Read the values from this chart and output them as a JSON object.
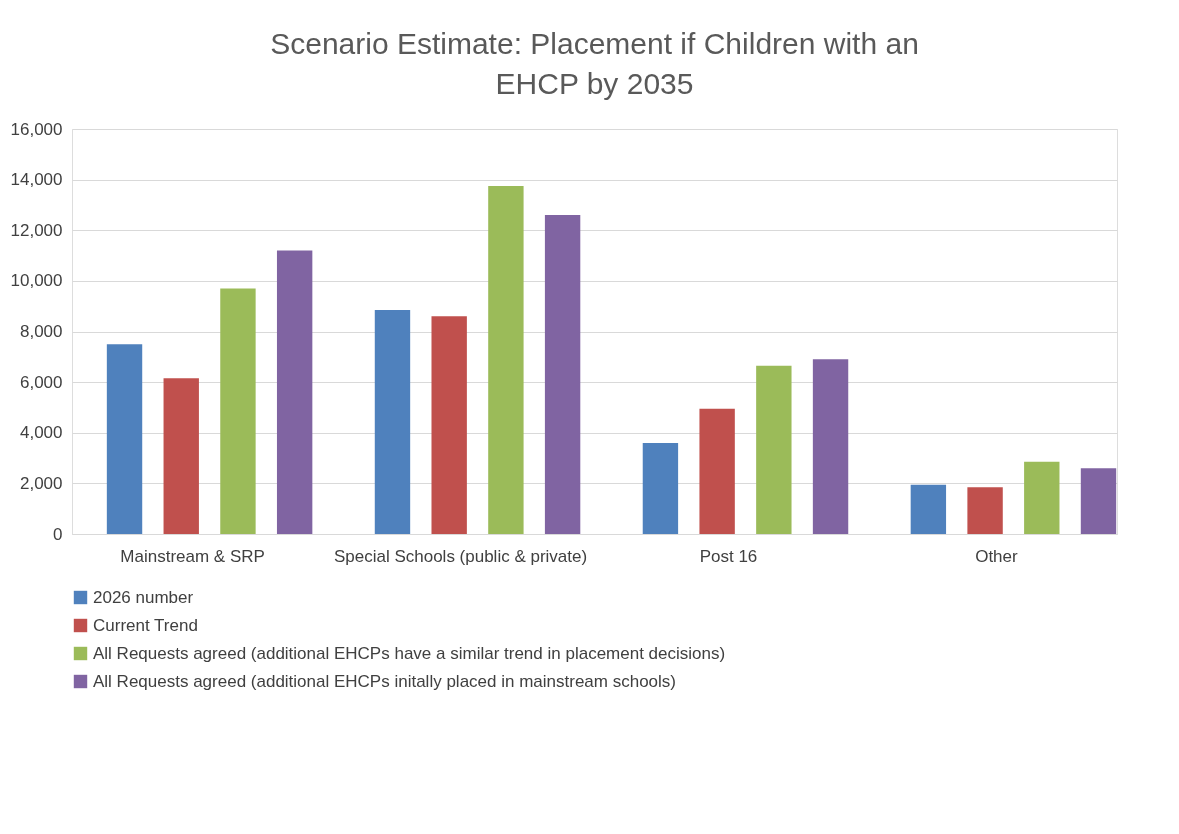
{
  "chart_data": {
    "type": "bar",
    "title": "Scenario Estimate: Placement if Children with an EHCP by 2035",
    "categories": [
      "Mainstream & SRP",
      "Special Schools (public & private)",
      "Post 16",
      "Other"
    ],
    "series": [
      {
        "name": "2026 number",
        "color": "#4f81bd",
        "values": [
          7500,
          8850,
          3600,
          1950
        ]
      },
      {
        "name": "Current Trend",
        "color": "#c0504d",
        "values": [
          6150,
          8600,
          4950,
          1850
        ]
      },
      {
        "name": "All Requests agreed (additional EHCPs have a similar trend in placement decisions)",
        "color": "#9bbb59",
        "values": [
          9700,
          13750,
          6650,
          2850
        ]
      },
      {
        "name": "All Requests agreed (additional EHCPs initally placed in mainstream schools)",
        "color": "#8064a2",
        "values": [
          11200,
          12600,
          6900,
          2600
        ]
      }
    ],
    "ylim": [
      0,
      16000
    ],
    "yticks": [
      0,
      {
        "value": 2000,
        "label": "2,000"
      },
      {
        "value": 4000,
        "label": "4,000"
      },
      {
        "value": 6000,
        "label": "6,000"
      },
      {
        "value": 8000,
        "label": "8,000"
      },
      {
        "value": 10000,
        "label": "10,000"
      },
      {
        "value": 12000,
        "label": "12,000"
      },
      {
        "value": 14000,
        "label": "14,000"
      },
      {
        "value": 16000,
        "label": "16,000"
      }
    ],
    "grid": "y",
    "legend": "bottom"
  }
}
